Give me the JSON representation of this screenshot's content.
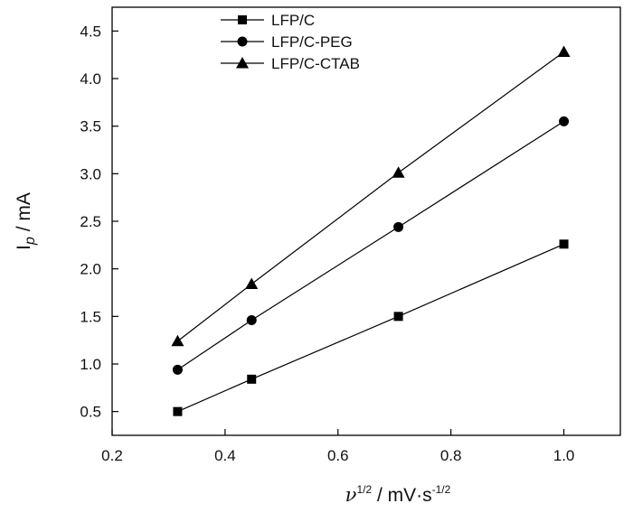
{
  "chart_data": {
    "type": "line",
    "x": [
      0.316,
      0.447,
      0.707,
      1.0
    ],
    "series": [
      {
        "name": "LFP/C",
        "marker": "square",
        "values": [
          0.5,
          0.84,
          1.5,
          2.26
        ]
      },
      {
        "name": "LFP/C-PEG",
        "marker": "circle",
        "values": [
          0.94,
          1.46,
          2.44,
          3.55
        ]
      },
      {
        "name": "LFP/C-CTAB",
        "marker": "triangle",
        "values": [
          1.24,
          1.84,
          3.01,
          4.28
        ]
      }
    ],
    "xlabel": {
      "symbol": "ν",
      "sup": "1/2",
      "unit_main": " / mV·s",
      "unit_sup": "-1/2"
    },
    "ylabel": {
      "main": "I",
      "sub": "p",
      "rest": " / mA"
    },
    "xlim": [
      0.2,
      1.1
    ],
    "ylim": [
      0.25,
      4.75
    ],
    "xticks": [
      "0.2",
      "0.4",
      "0.6",
      "0.8",
      "1.0"
    ],
    "yticks": [
      "0.5",
      "1.0",
      "1.5",
      "2.0",
      "2.5",
      "3.0",
      "3.5",
      "4.0",
      "4.5"
    ],
    "grid": false,
    "legend": "top-left",
    "line_color": "#000000"
  }
}
